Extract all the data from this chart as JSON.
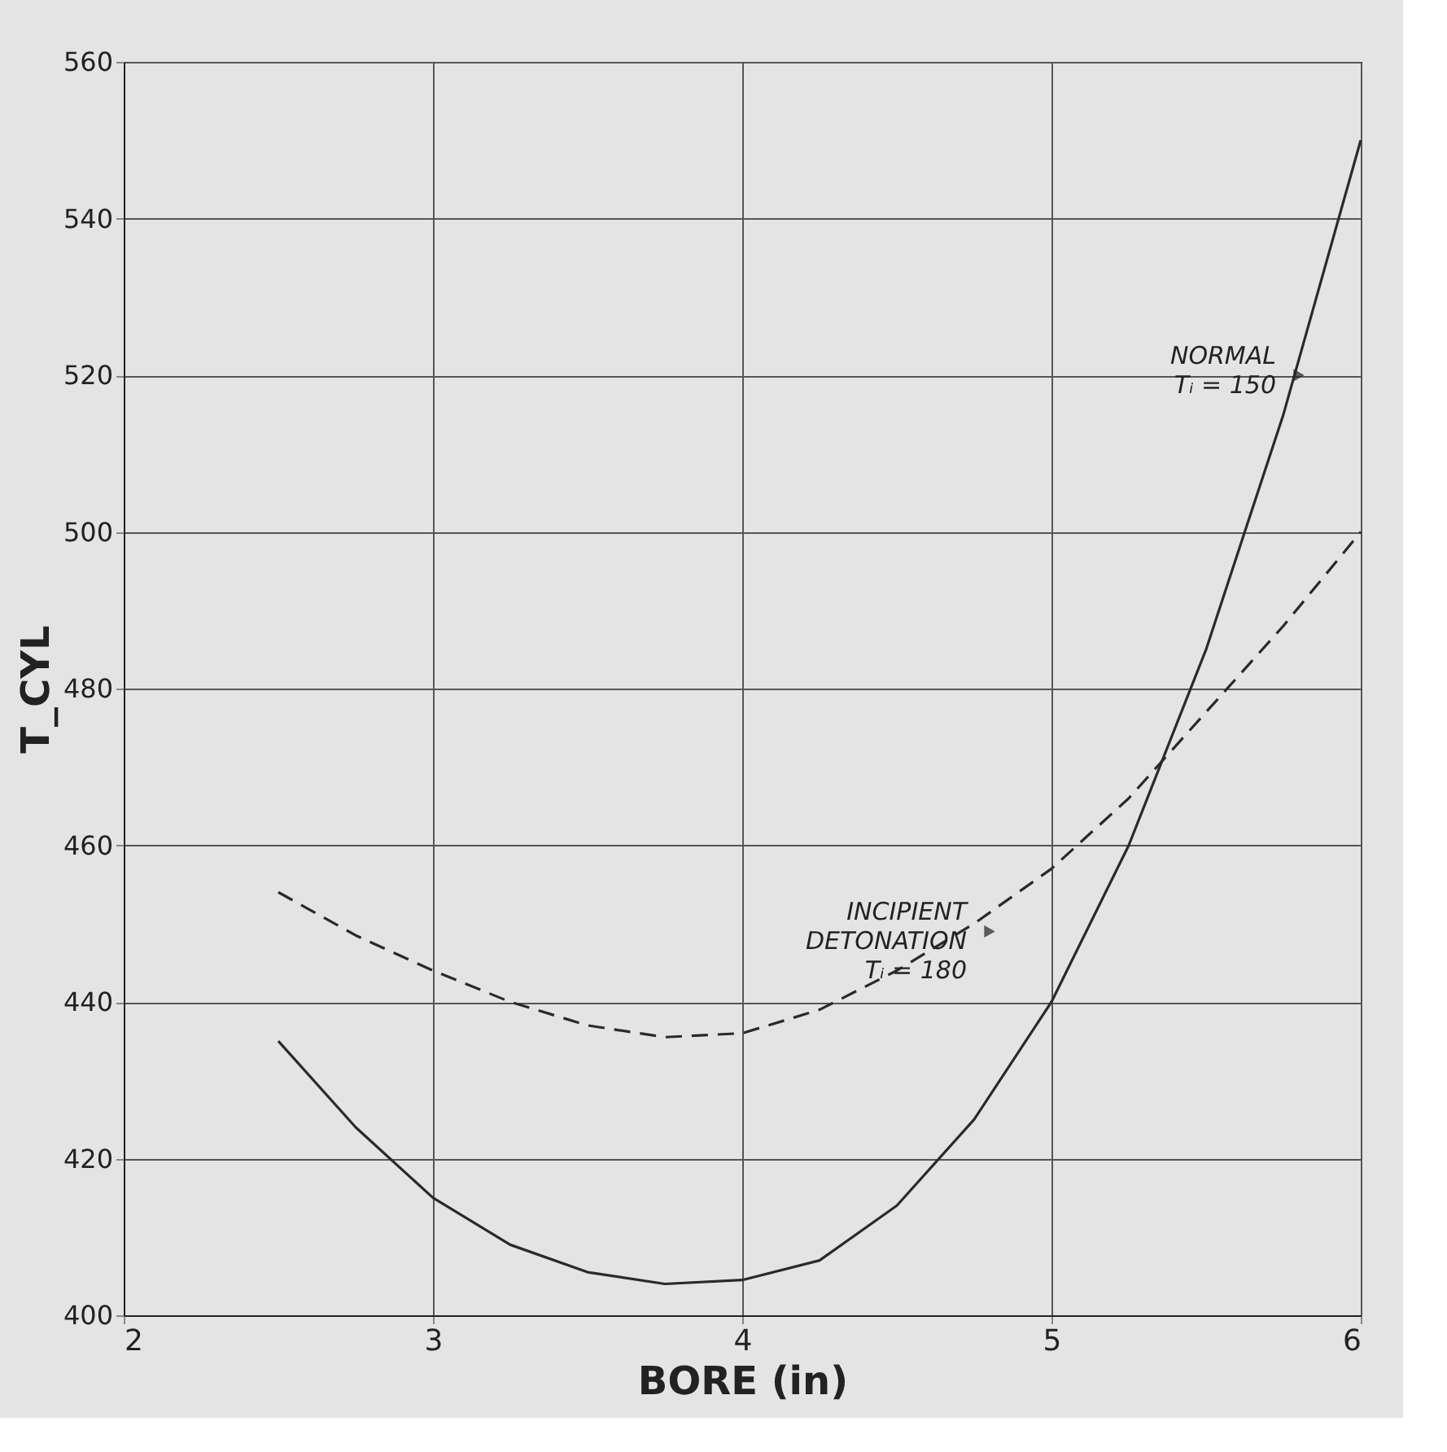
{
  "chart_data": {
    "type": "line",
    "xlabel": "BORE (in)",
    "ylabel": "T_CYL",
    "x": [
      2.5,
      2.75,
      3.0,
      3.25,
      3.5,
      3.75,
      4.0,
      4.25,
      4.5,
      4.75,
      5.0,
      5.25,
      5.5,
      5.75,
      6.0
    ],
    "series": [
      {
        "color": "#2a2a2a",
        "line_style": "solid",
        "values": [
          435,
          424,
          415,
          409,
          405.5,
          404,
          404.5,
          407,
          414,
          425,
          440,
          460,
          485,
          515,
          550
        ]
      },
      {
        "color": "#2a2a2a",
        "line_style": "dashed",
        "values": [
          454,
          448.5,
          444,
          440,
          437,
          435.5,
          436,
          439,
          444,
          450,
          457,
          466,
          477,
          488,
          500
        ]
      }
    ],
    "xlim": [
      2,
      6
    ],
    "xticks": [
      2,
      3,
      4,
      5,
      6
    ],
    "ylim": [
      400,
      560
    ],
    "yticks": [
      400,
      420,
      440,
      460,
      480,
      500,
      520,
      540,
      560
    ],
    "grid": true,
    "marker": "none",
    "annotations": [
      {
        "text": "NORMAL\nTᵢ = 150",
        "x": 5.8,
        "y": 520
      },
      {
        "text": "INCIPIENT\nDETONATION\nTᵢ = 180",
        "x": 4.8,
        "y": 449
      }
    ]
  }
}
